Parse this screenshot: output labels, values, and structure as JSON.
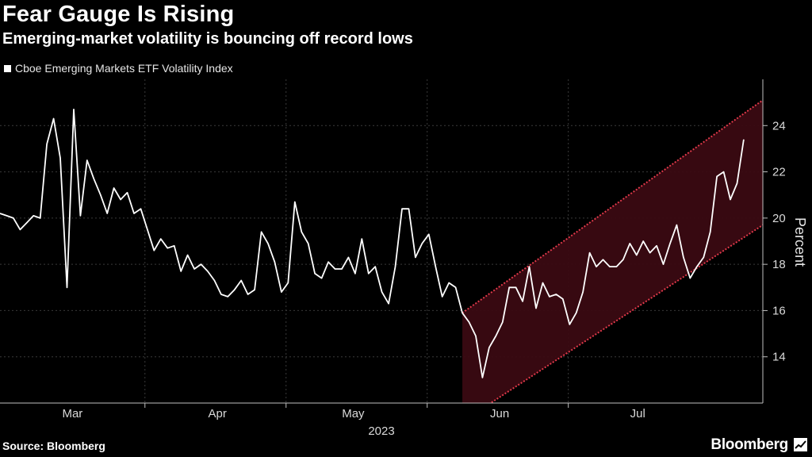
{
  "header": {
    "title": "Fear Gauge Is Rising",
    "subtitle": "Emerging-market volatility is bouncing off record lows"
  },
  "footer": {
    "source": "Source: Bloomberg",
    "brand": "Bloomberg"
  },
  "colors": {
    "background": "#000000",
    "line": "#ffffff",
    "channel_fill": "#3a0a12",
    "channel_edge": "#e0394a",
    "grid": "#3a3a3a"
  },
  "chart_data": {
    "type": "line",
    "title": "Fear Gauge Is Rising",
    "subtitle": "Emerging-market volatility is bouncing off record lows",
    "ylabel": "Percent",
    "xlabel": "2023",
    "ylim": [
      12,
      26
    ],
    "yticks": [
      14,
      16,
      18,
      20,
      22,
      24
    ],
    "xticks": [
      {
        "label": "Mar",
        "t": 0.095
      },
      {
        "label": "Apr",
        "t": 0.285
      },
      {
        "label": "May",
        "t": 0.463
      },
      {
        "label": "Jun",
        "t": 0.655
      },
      {
        "label": "Jul",
        "t": 0.836
      }
    ],
    "year_label": "2023",
    "legend": [
      "Cboe Emerging Markets ETF Volatility Index"
    ],
    "series": [
      {
        "name": "Cboe Emerging Markets ETF Volatility Index",
        "values": [
          20.2,
          20.1,
          20.0,
          19.5,
          19.8,
          20.1,
          20.0,
          23.2,
          24.3,
          22.6,
          17.0,
          24.7,
          20.1,
          22.5,
          21.7,
          21.0,
          20.2,
          21.3,
          20.8,
          21.1,
          20.2,
          20.4,
          19.5,
          18.6,
          19.1,
          18.7,
          18.8,
          17.7,
          18.4,
          17.8,
          18.0,
          17.7,
          17.3,
          16.7,
          16.6,
          16.9,
          17.3,
          16.7,
          16.9,
          19.4,
          18.9,
          18.1,
          16.8,
          17.2,
          20.7,
          19.4,
          18.9,
          17.6,
          17.4,
          18.1,
          17.8,
          17.8,
          18.3,
          17.6,
          19.1,
          17.6,
          17.9,
          16.8,
          16.3,
          17.9,
          20.4,
          20.4,
          18.3,
          18.9,
          19.3,
          17.9,
          16.6,
          17.2,
          17.0,
          15.9,
          15.5,
          14.9,
          13.1,
          14.4,
          14.9,
          15.5,
          17.0,
          17.0,
          16.4,
          17.9,
          16.1,
          17.2,
          16.6,
          16.7,
          16.5,
          15.4,
          15.9,
          16.8,
          18.5,
          17.9,
          18.2,
          17.9,
          17.9,
          18.2,
          18.9,
          18.4,
          19.0,
          18.5,
          18.8,
          18.0,
          18.9,
          19.7,
          18.3,
          17.4,
          17.9,
          18.3,
          19.4,
          21.8,
          22.0,
          20.8,
          21.5,
          23.4
        ]
      }
    ],
    "channel": {
      "start_index": 69,
      "upper_start": 15.9,
      "upper_end": 25.1,
      "lower_start": 11.2,
      "lower_end": 19.7,
      "end_t": 1.0
    }
  }
}
